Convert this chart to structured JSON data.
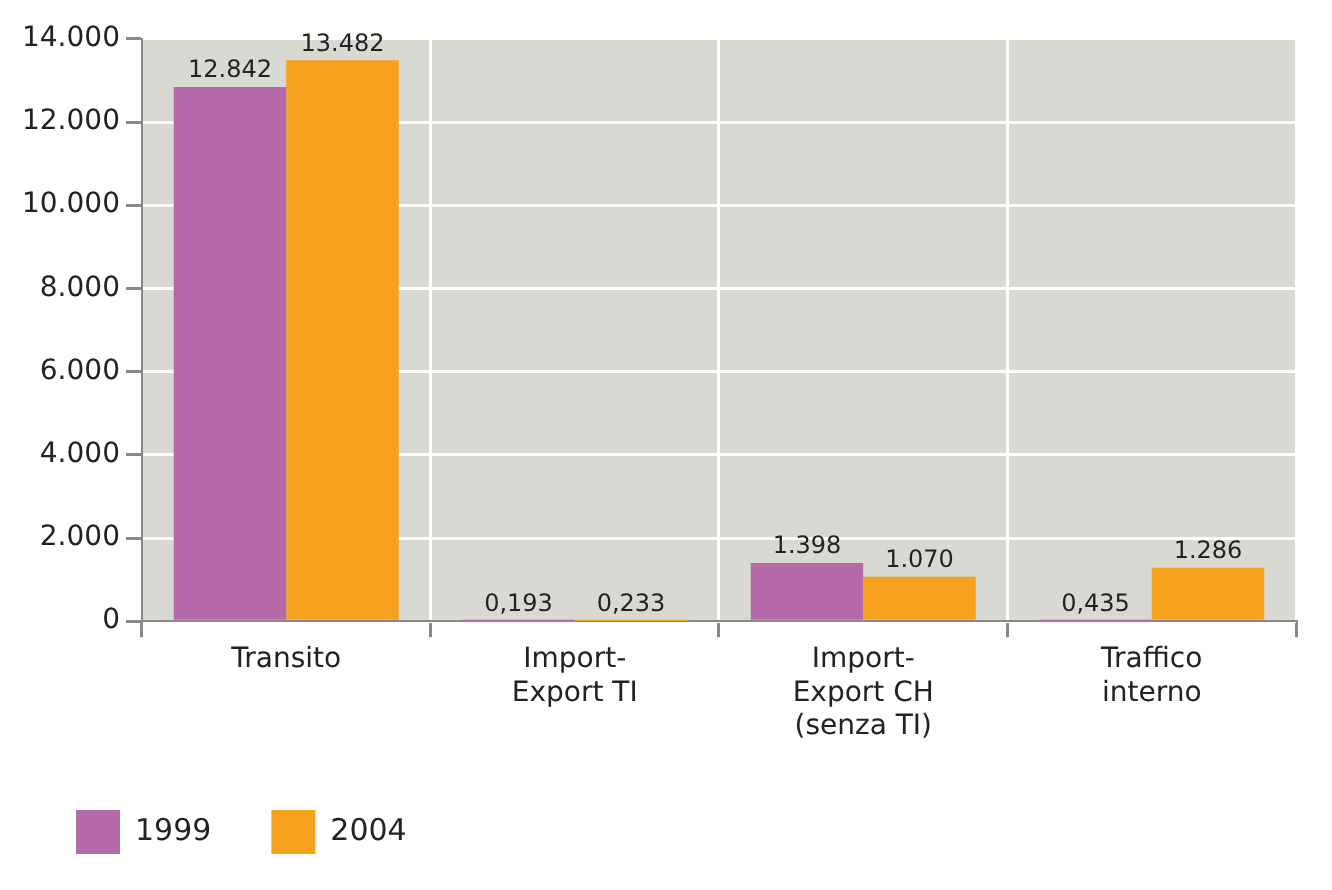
{
  "chart_data": {
    "type": "bar",
    "categories": [
      "Transito",
      "Import-Export TI",
      "Import-Export CH (senza TI)",
      "Traffico interno"
    ],
    "series": [
      {
        "name": "1999",
        "color": "#b469a9",
        "values": [
          12842,
          0.193,
          1398,
          0.435
        ],
        "value_labels": [
          "12.842",
          "0,193",
          "1.398",
          "0,435"
        ]
      },
      {
        "name": "2004",
        "color": "#f6a21e",
        "values": [
          13482,
          0.233,
          1070,
          1286
        ],
        "value_labels": [
          "13.482",
          "0,233",
          "1.070",
          "1.286"
        ]
      }
    ],
    "ylim": [
      0,
      14000
    ],
    "yticks": [
      {
        "value": 0,
        "label": "0"
      },
      {
        "value": 2000,
        "label": "2.000"
      },
      {
        "value": 4000,
        "label": "4.000"
      },
      {
        "value": 6000,
        "label": "6.000"
      },
      {
        "value": 8000,
        "label": "8.000"
      },
      {
        "value": 10000,
        "label": "10.000"
      },
      {
        "value": 12000,
        "label": "12.000"
      },
      {
        "value": 14000,
        "label": "14.000"
      }
    ],
    "grid": true,
    "legend": "bottom left"
  }
}
